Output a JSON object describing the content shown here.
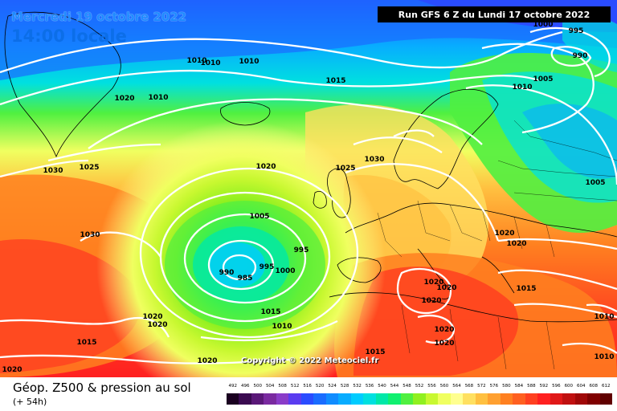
{
  "header": {
    "date_line": "Mercredi 19 octobre 2022",
    "time_line": "14:00 locale",
    "run_info": "Run GFS 6 Z du Lundi 17 octobre 2022"
  },
  "map": {
    "copyright": "Copyright © 2022 Meteociel.fr",
    "isobar_labels": [
      "1000",
      "995",
      "990",
      "1010",
      "1010",
      "1010",
      "1015",
      "1020",
      "1010",
      "1005",
      "1010",
      "1030",
      "1025",
      "1020",
      "1030",
      "1025",
      "1005",
      "995",
      "990",
      "985",
      "995",
      "1000",
      "1030",
      "1020",
      "1020",
      "1020",
      "1015",
      "1020",
      "1015",
      "1010",
      "1015",
      "1020",
      "1020",
      "1020",
      "1020",
      "1020",
      "1020",
      "1020",
      "1010",
      "1010",
      "1005",
      "1020",
      "1020",
      "1015",
      "1020"
    ]
  },
  "legend": {
    "title": "Géop. Z500 & pression au sol",
    "subtitle": "(+ 54h)",
    "scale_values": [
      "492",
      "496",
      "500",
      "504",
      "508",
      "512",
      "516",
      "520",
      "524",
      "528",
      "532",
      "536",
      "540",
      "544",
      "548",
      "552",
      "556",
      "560",
      "564",
      "568",
      "572",
      "576",
      "580",
      "584",
      "588",
      "592",
      "596",
      "600",
      "604",
      "608",
      "612"
    ],
    "scale_colors": [
      "#1a0020",
      "#3a0a50",
      "#5a1878",
      "#7a2aa0",
      "#8a3cc8",
      "#5a3cf0",
      "#2a4cff",
      "#1a6cff",
      "#108cff",
      "#08acff",
      "#00ccff",
      "#00e0e0",
      "#00e8a8",
      "#10f070",
      "#50f040",
      "#90f020",
      "#c8f830",
      "#f0ff60",
      "#ffff90",
      "#ffe060",
      "#ffc040",
      "#ffa030",
      "#ff8020",
      "#ff6020",
      "#ff4020",
      "#ff2020",
      "#e01818",
      "#c01010",
      "#a00808",
      "#800000",
      "#600000"
    ]
  }
}
